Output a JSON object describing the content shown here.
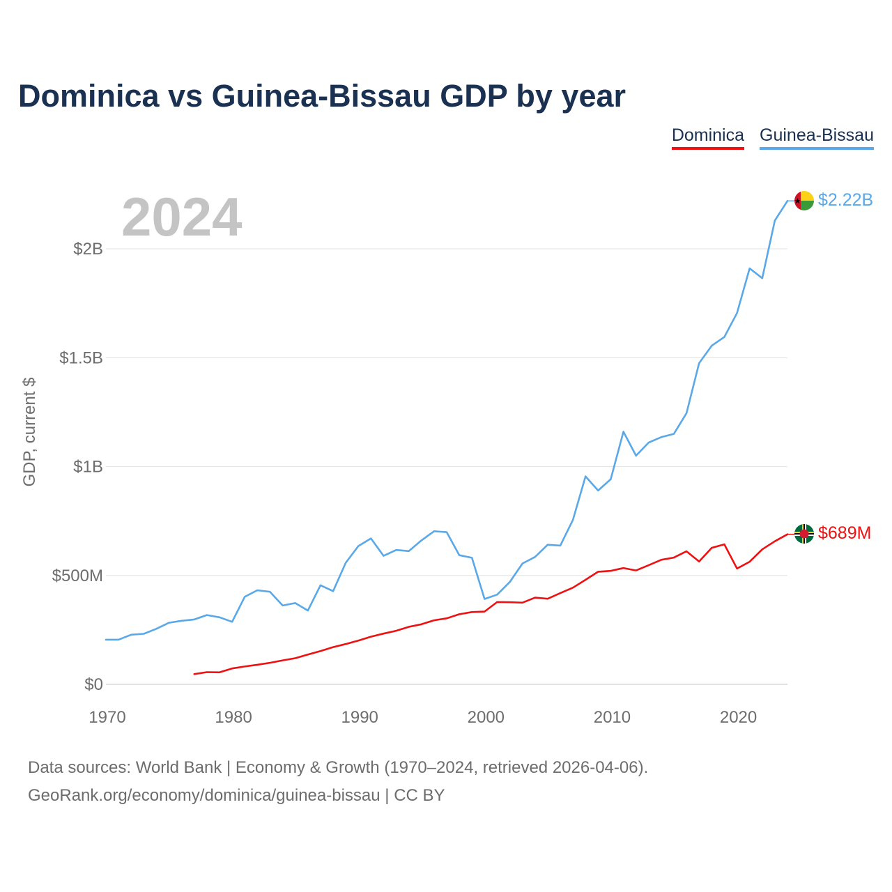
{
  "title": "Dominica vs Guinea-Bissau GDP by year",
  "legend": [
    {
      "label": "Dominica",
      "color": "#ee1111"
    },
    {
      "label": "Guinea-Bissau",
      "color": "#5aa8e8"
    }
  ],
  "footer": {
    "line1": "Data sources: World Bank | Economy & Growth (1970–2024, retrieved 2026-04-06).",
    "line2": "GeoRank.org/economy/dominica/guinea-bissau | CC BY"
  },
  "chart_data": {
    "type": "line",
    "title": "Dominica vs Guinea-Bissau GDP by year",
    "year_watermark": "2024",
    "ylabel": "GDP, current $",
    "xlabel": "",
    "xlim": [
      1970,
      2024
    ],
    "ylim": [
      0,
      2300000000
    ],
    "grid": true,
    "legend_position": "top-right",
    "x_ticks": [
      {
        "value": 1970,
        "label": "1970"
      },
      {
        "value": 1980,
        "label": "1980"
      },
      {
        "value": 1990,
        "label": "1990"
      },
      {
        "value": 2000,
        "label": "2000"
      },
      {
        "value": 2010,
        "label": "2010"
      },
      {
        "value": 2020,
        "label": "2020"
      }
    ],
    "y_ticks": [
      {
        "value": 0,
        "label": "$0"
      },
      {
        "value": 500000000,
        "label": "$500M"
      },
      {
        "value": 1000000000,
        "label": "$1B"
      },
      {
        "value": 1500000000,
        "label": "$1.5B"
      },
      {
        "value": 2000000000,
        "label": "$2B"
      }
    ],
    "series": [
      {
        "name": "Guinea-Bissau",
        "color": "#5aa8e8",
        "end_label": "$2.22B",
        "flag": "guinea-bissau-flag-icon",
        "x": [
          1970,
          1971,
          1972,
          1973,
          1974,
          1975,
          1976,
          1977,
          1978,
          1979,
          1980,
          1981,
          1982,
          1983,
          1984,
          1985,
          1986,
          1987,
          1988,
          1989,
          1990,
          1991,
          1992,
          1993,
          1994,
          1995,
          1996,
          1997,
          1998,
          1999,
          2000,
          2001,
          2002,
          2003,
          2004,
          2005,
          2006,
          2007,
          2008,
          2009,
          2010,
          2011,
          2012,
          2013,
          2014,
          2015,
          2016,
          2017,
          2018,
          2019,
          2020,
          2021,
          2022,
          2023,
          2024
        ],
        "values": [
          205000000,
          205000000,
          228000000,
          232000000,
          255000000,
          283000000,
          292000000,
          298000000,
          318000000,
          308000000,
          287000000,
          402000000,
          432000000,
          425000000,
          362000000,
          373000000,
          339000000,
          455000000,
          428000000,
          558000000,
          635000000,
          670000000,
          590000000,
          617000000,
          612000000,
          661000000,
          703000000,
          699000000,
          593000000,
          581000000,
          392000000,
          412000000,
          470000000,
          555000000,
          585000000,
          641000000,
          637000000,
          755000000,
          955000000,
          890000000,
          942000000,
          1160000000,
          1050000000,
          1110000000,
          1135000000,
          1150000000,
          1245000000,
          1475000000,
          1555000000,
          1595000000,
          1705000000,
          1910000000,
          1865000000,
          2130000000,
          2220000000
        ]
      },
      {
        "name": "Dominica",
        "color": "#ee1111",
        "end_label": "$689M",
        "flag": "dominica-flag-icon",
        "x": [
          1977,
          1978,
          1979,
          1980,
          1981,
          1982,
          1983,
          1984,
          1985,
          1986,
          1987,
          1988,
          1989,
          1990,
          1991,
          1992,
          1993,
          1994,
          1995,
          1996,
          1997,
          1998,
          1999,
          2000,
          2001,
          2002,
          2003,
          2004,
          2005,
          2006,
          2007,
          2008,
          2009,
          2010,
          2011,
          2012,
          2013,
          2014,
          2015,
          2016,
          2017,
          2018,
          2019,
          2020,
          2021,
          2022,
          2023,
          2024
        ],
        "values": [
          47000000,
          56000000,
          55000000,
          73000000,
          82000000,
          90000000,
          99000000,
          110000000,
          120000000,
          137000000,
          153000000,
          171000000,
          185000000,
          201000000,
          219000000,
          233000000,
          246000000,
          264000000,
          276000000,
          294000000,
          303000000,
          322000000,
          332000000,
          334000000,
          378000000,
          377000000,
          375000000,
          398000000,
          393000000,
          419000000,
          444000000,
          480000000,
          517000000,
          521000000,
          534000000,
          523000000,
          547000000,
          572000000,
          582000000,
          611000000,
          564000000,
          627000000,
          643000000,
          532000000,
          563000000,
          620000000,
          657000000,
          689000000
        ]
      }
    ]
  }
}
